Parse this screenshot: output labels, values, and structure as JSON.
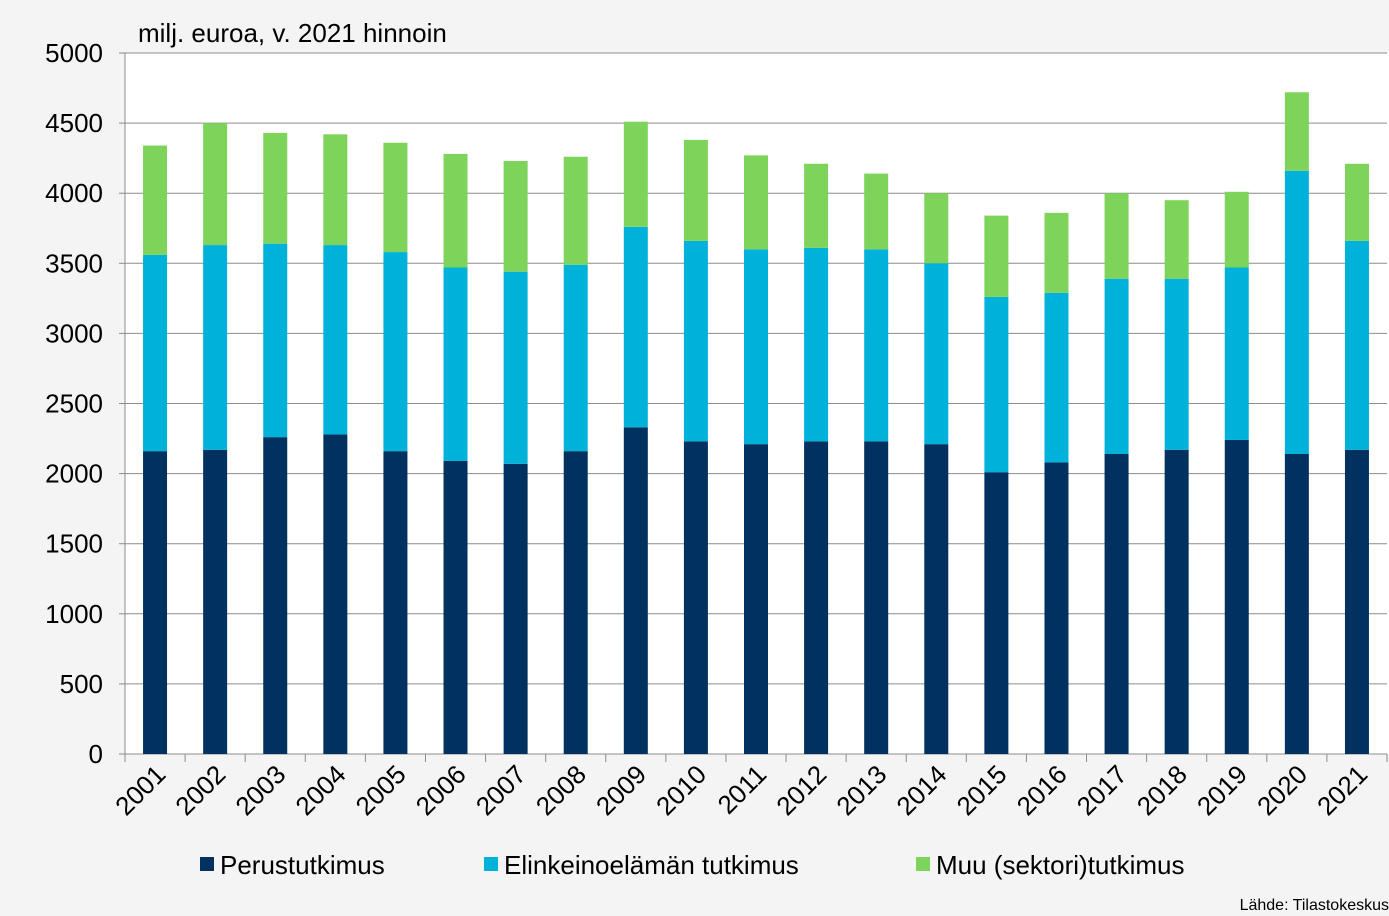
{
  "chart_data": {
    "type": "stacked_bar",
    "y_axis_label": "milj.  euroa, v. 2021 hinnoin",
    "source": "Lähde: Tilastokeskus",
    "categories": [
      "2001",
      "2002",
      "2003",
      "2004",
      "2005",
      "2006",
      "2007",
      "2008",
      "2009",
      "2010",
      "2011",
      "2012",
      "2013",
      "2014",
      "2015",
      "2016",
      "2017",
      "2018",
      "2019",
      "2020",
      "2021"
    ],
    "series": [
      {
        "name": "Perustutkimus",
        "color": "#00315f",
        "values": [
          2160,
          2170,
          2260,
          2280,
          2160,
          2090,
          2070,
          2160,
          2330,
          2230,
          2210,
          2230,
          2230,
          2210,
          2010,
          2080,
          2140,
          2170,
          2240,
          2140,
          2170
        ]
      },
      {
        "name": "Elinkeinoelämän tutkimus",
        "color": "#00b2d9",
        "values": [
          1400,
          1460,
          1380,
          1350,
          1420,
          1380,
          1370,
          1330,
          1430,
          1430,
          1390,
          1380,
          1370,
          1290,
          1250,
          1210,
          1250,
          1220,
          1230,
          2020,
          1490
        ]
      },
      {
        "name": "Muu (sektori)tutkimus",
        "color": "#7ed35a",
        "values": [
          780,
          870,
          790,
          790,
          780,
          810,
          790,
          770,
          750,
          720,
          670,
          600,
          540,
          500,
          580,
          570,
          610,
          560,
          540,
          560,
          550
        ]
      }
    ],
    "ylim": [
      0,
      5000
    ],
    "yticks": [
      0,
      500,
      1000,
      1500,
      2000,
      2500,
      3000,
      3500,
      4000,
      4500,
      5000
    ],
    "grid": true
  }
}
